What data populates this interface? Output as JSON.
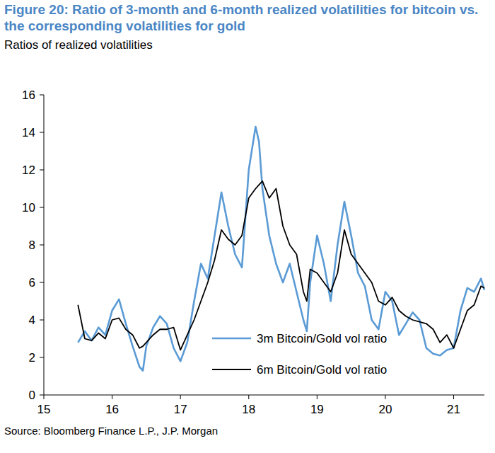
{
  "chart_data": {
    "type": "line",
    "title": "Figure 20: Ratio of 3-month and 6-month realized volatilities for bitcoin vs. the corresponding volatilities for gold",
    "subtitle": "Ratios of realized volatilities",
    "source": "Source: Bloomberg Finance L.P., J.P. Morgan",
    "x": [
      15.5,
      15.6,
      15.7,
      15.8,
      15.9,
      16.0,
      16.1,
      16.2,
      16.3,
      16.4,
      16.45,
      16.5,
      16.6,
      16.7,
      16.8,
      16.9,
      17.0,
      17.1,
      17.2,
      17.3,
      17.4,
      17.5,
      17.6,
      17.7,
      17.8,
      17.9,
      18.0,
      18.1,
      18.15,
      18.2,
      18.3,
      18.4,
      18.5,
      18.6,
      18.7,
      18.8,
      18.85,
      18.9,
      19.0,
      19.1,
      19.2,
      19.3,
      19.4,
      19.5,
      19.6,
      19.7,
      19.8,
      19.9,
      20.0,
      20.1,
      20.2,
      20.3,
      20.4,
      20.5,
      20.6,
      20.7,
      20.8,
      20.9,
      21.0,
      21.1,
      21.2,
      21.3,
      21.4,
      21.45
    ],
    "series": [
      {
        "name": "3m Bitcoin/Gold vol ratio",
        "color": "#5B9BD5",
        "values": [
          2.8,
          3.4,
          2.9,
          3.6,
          3.2,
          4.5,
          5.1,
          3.8,
          2.6,
          1.5,
          1.3,
          2.6,
          3.6,
          4.2,
          3.8,
          2.5,
          1.8,
          2.8,
          5.0,
          7.0,
          6.2,
          8.5,
          10.8,
          9.0,
          7.5,
          6.8,
          12.0,
          14.3,
          13.5,
          11.0,
          8.5,
          7.0,
          6.0,
          7.0,
          5.5,
          4.0,
          3.4,
          6.0,
          8.5,
          7.0,
          5.0,
          8.0,
          10.3,
          8.5,
          6.5,
          5.8,
          4.0,
          3.5,
          5.5,
          5.0,
          3.2,
          3.8,
          4.4,
          4.0,
          2.5,
          2.2,
          2.1,
          2.4,
          2.5,
          4.5,
          5.7,
          5.5,
          6.2,
          5.6
        ]
      },
      {
        "name": "6m Bitcoin/Gold vol ratio",
        "color": "#000000",
        "values": [
          4.8,
          3.0,
          2.9,
          3.3,
          3.0,
          4.0,
          4.1,
          3.5,
          3.2,
          2.5,
          2.6,
          2.8,
          3.2,
          3.5,
          3.5,
          3.6,
          2.4,
          3.2,
          4.0,
          5.0,
          6.0,
          7.2,
          8.8,
          8.3,
          8.0,
          8.5,
          10.5,
          11.0,
          11.2,
          11.4,
          10.5,
          11.0,
          9.0,
          8.0,
          7.5,
          5.5,
          5.0,
          6.7,
          6.5,
          6.0,
          5.5,
          6.5,
          8.8,
          7.5,
          7.0,
          6.5,
          6.0,
          5.0,
          4.8,
          5.2,
          4.5,
          4.2,
          4.0,
          3.9,
          3.8,
          3.5,
          2.8,
          3.2,
          2.5,
          3.5,
          4.5,
          4.8,
          5.8,
          5.7
        ]
      }
    ],
    "xlim": [
      15,
      21.45
    ],
    "xticks": [
      15,
      16,
      17,
      18,
      19,
      20,
      21
    ],
    "ylim": [
      0,
      16
    ],
    "yticks": [
      0,
      2,
      4,
      6,
      8,
      10,
      12,
      14,
      16
    ],
    "grid": false,
    "legend": "bottom"
  }
}
